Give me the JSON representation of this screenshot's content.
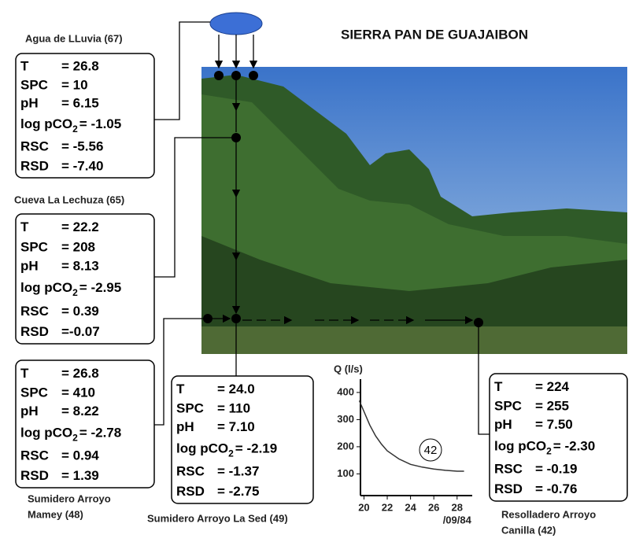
{
  "title": "SIERRA PAN DE GUAJAIBON",
  "stations": [
    {
      "name": [
        "Agua de LLuvia (67)"
      ],
      "params": [
        [
          "T",
          "= 26.8"
        ],
        [
          "SPC",
          "= 10"
        ],
        [
          "pH",
          "= 6.15"
        ],
        [
          "log pCO",
          "2",
          "= -1.05"
        ],
        [
          "RSC",
          "= -5.56"
        ],
        [
          "RSD",
          "= -7.40"
        ]
      ]
    },
    {
      "name": [
        "Cueva La Lechuza (65)"
      ],
      "params": [
        [
          "T",
          "= 22.2"
        ],
        [
          "SPC",
          "= 208"
        ],
        [
          "pH",
          "= 8.13"
        ],
        [
          "log pCO",
          "2",
          "= -2.95"
        ],
        [
          "RSC",
          "= 0.39"
        ],
        [
          "RSD",
          "=-0.07"
        ]
      ]
    },
    {
      "name": [
        "Sumidero Arroyo",
        "Mamey (48)"
      ],
      "params": [
        [
          "T",
          "= 26.8"
        ],
        [
          "SPC",
          "= 410"
        ],
        [
          "pH",
          "= 8.22"
        ],
        [
          "log pCO",
          "2",
          "= -2.78"
        ],
        [
          "RSC",
          "= 0.94"
        ],
        [
          "RSD",
          "= 1.39"
        ]
      ]
    },
    {
      "name": [
        "Sumidero Arroyo La Sed (49)"
      ],
      "params": [
        [
          "T",
          "= 24.0"
        ],
        [
          "SPC",
          "= 110"
        ],
        [
          "pH",
          "= 7.10"
        ],
        [
          "log pCO",
          "2",
          "= -2.19"
        ],
        [
          "RSC",
          "= -1.37"
        ],
        [
          "RSD",
          "= -2.75"
        ]
      ]
    },
    {
      "name": [
        "Resolladero Arroyo",
        "Canilla (42)"
      ],
      "params": [
        [
          "T",
          "= 224"
        ],
        [
          "SPC",
          "= 255"
        ],
        [
          "pH",
          "= 7.50"
        ],
        [
          "log pCO",
          "2",
          "= -2.30"
        ],
        [
          "RSC",
          "= -0.19"
        ],
        [
          "RSD",
          "= -0.76"
        ]
      ]
    }
  ],
  "hydrograph": {
    "type": "line",
    "y_label": "Q (l/s)",
    "tag": "42",
    "x_note": "/09/84",
    "x": [
      19.6,
      20,
      20.5,
      21,
      21.5,
      22,
      23,
      24,
      25,
      26,
      27,
      28,
      28.6
    ],
    "values": [
      370,
      330,
      280,
      240,
      210,
      185,
      155,
      135,
      125,
      118,
      113,
      110,
      110
    ],
    "xlim": [
      19.7,
      29.3
    ],
    "ylim": [
      20,
      420
    ],
    "xticks": [
      20,
      22,
      24,
      26,
      28
    ],
    "yticks": [
      100,
      200,
      300,
      400
    ]
  }
}
